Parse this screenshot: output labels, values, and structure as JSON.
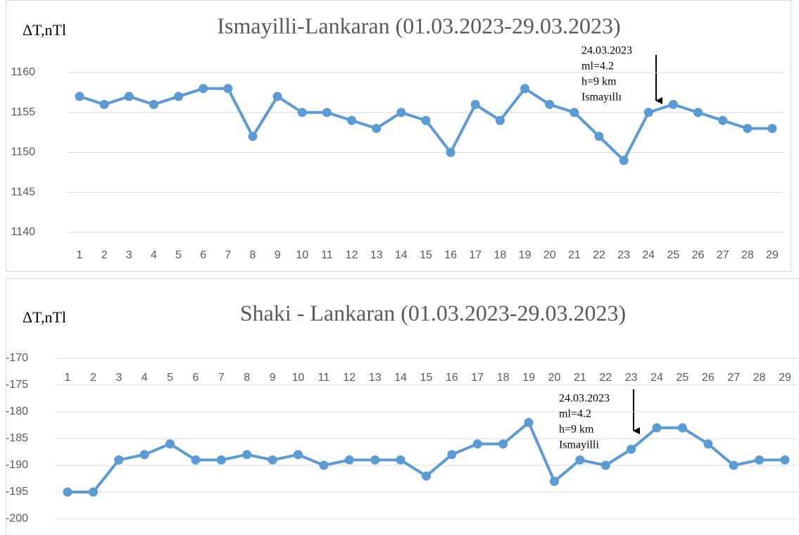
{
  "chart_data": [
    {
      "type": "line",
      "title": "Ismayilli-Lankaran (01.03.2023-29.03.2023)",
      "y_label": "ΔT,nTl",
      "categories": [
        "1",
        "2",
        "3",
        "4",
        "5",
        "6",
        "7",
        "8",
        "9",
        "10",
        "11",
        "12",
        "13",
        "14",
        "15",
        "16",
        "17",
        "18",
        "19",
        "20",
        "21",
        "22",
        "23",
        "24",
        "25",
        "26",
        "27",
        "28",
        "29"
      ],
      "values": [
        1157,
        1156,
        1157,
        1156,
        1157,
        1158,
        1158,
        1152,
        1157,
        1155,
        1155,
        1154,
        1153,
        1155,
        1154,
        1150,
        1156,
        1154,
        1158,
        1156,
        1155,
        1152,
        1149,
        1155,
        1156,
        1155,
        1154,
        1153,
        1153
      ],
      "color": "#5b9bd5",
      "ylim": [
        1140,
        1160
      ],
      "yticks": [
        1140,
        1145,
        1150,
        1155,
        1160
      ],
      "grid": true,
      "annotation": [
        "24.03.2023",
        "ml=4.2",
        "h=9 km",
        "Ismayıllı"
      ]
    },
    {
      "type": "line",
      "title": "Shaki - Lankaran (01.03.2023-29.03.2023)",
      "y_label": "ΔT,nTl",
      "categories": [
        "1",
        "2",
        "3",
        "4",
        "5",
        "6",
        "7",
        "8",
        "9",
        "10",
        "11",
        "12",
        "13",
        "14",
        "15",
        "16",
        "17",
        "18",
        "19",
        "20",
        "21",
        "22",
        "23",
        "24",
        "25",
        "26",
        "27",
        "28",
        "29"
      ],
      "values": [
        -195,
        -195,
        -189,
        -188,
        -186,
        -189,
        -189,
        -188,
        -189,
        -188,
        -190,
        -189,
        -189,
        -189,
        -192,
        -188,
        -186,
        -186,
        -182,
        -193,
        -189,
        -190,
        -187,
        -183,
        -183,
        -186,
        -190,
        -189,
        -189
      ],
      "color": "#5b9bd5",
      "ylim": [
        -200,
        -170
      ],
      "yticks": [
        -200,
        -195,
        -190,
        -185,
        -180,
        -175,
        -170
      ],
      "grid": true,
      "annotation": [
        "24.03.2023",
        "ml=4.2",
        "h=9 km",
        "Ismayilli"
      ]
    }
  ]
}
